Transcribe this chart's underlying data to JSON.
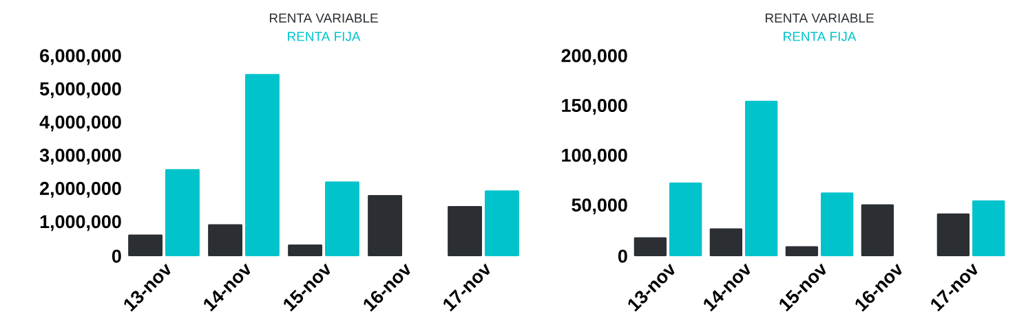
{
  "chart_data": [
    {
      "type": "bar",
      "categories": [
        "13-nov",
        "14-nov",
        "15-nov",
        "16-nov",
        "17-nov"
      ],
      "series": [
        {
          "name": "RENTA VARIABLE",
          "color": "#2b2f33",
          "values": [
            650000,
            960000,
            350000,
            1840000,
            1510000
          ]
        },
        {
          "name": "RENTA FIJA",
          "color": "#00c3cb",
          "values": [
            2620000,
            5490000,
            2250000,
            null,
            1980000
          ]
        }
      ],
      "ylim": [
        0,
        6000000
      ],
      "yticks": [
        {
          "value": 0,
          "label": "0"
        },
        {
          "value": 1000000,
          "label": "1,000,000"
        },
        {
          "value": 2000000,
          "label": "2,000,000"
        },
        {
          "value": 3000000,
          "label": "3,000,000"
        },
        {
          "value": 4000000,
          "label": "4,000,000"
        },
        {
          "value": 5000000,
          "label": "5,000,000"
        },
        {
          "value": 6000000,
          "label": "6,000,000"
        }
      ],
      "legend": "top"
    },
    {
      "type": "bar",
      "categories": [
        "13-nov",
        "14-nov",
        "15-nov",
        "16-nov",
        "17-nov"
      ],
      "series": [
        {
          "name": "RENTA VARIABLE",
          "color": "#2b2f33",
          "values": [
            19000,
            28000,
            10000,
            52000,
            43000
          ]
        },
        {
          "name": "RENTA FIJA",
          "color": "#00c3cb",
          "values": [
            74000,
            156000,
            64000,
            null,
            56000
          ]
        }
      ],
      "ylim": [
        0,
        200000
      ],
      "yticks": [
        {
          "value": 0,
          "label": "0"
        },
        {
          "value": 50000,
          "label": "50,000"
        },
        {
          "value": 100000,
          "label": "100,000"
        },
        {
          "value": 150000,
          "label": "150,000"
        },
        {
          "value": 200000,
          "label": "200,000"
        }
      ],
      "legend": "top"
    }
  ]
}
